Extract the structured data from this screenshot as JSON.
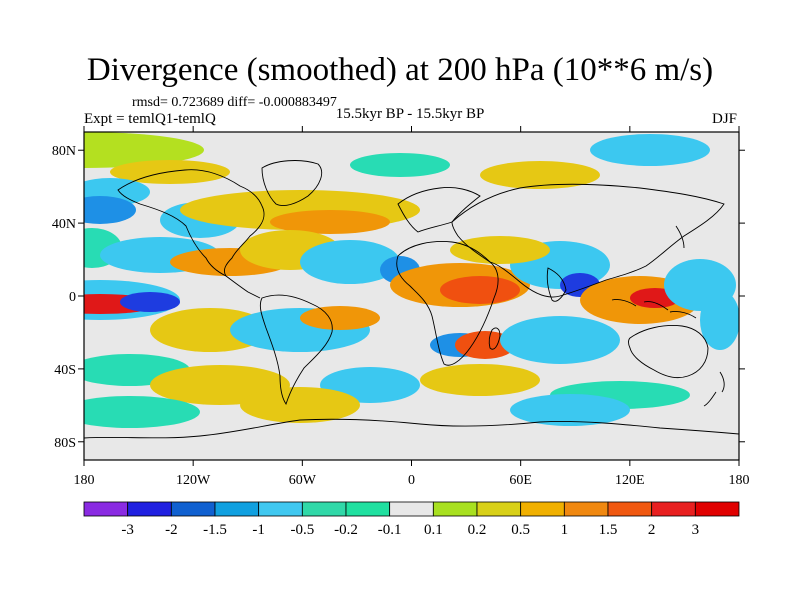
{
  "title": "Divergence (smoothed) at 200 hPa (10**6 m/s)",
  "stats_line": "rmsd= 0.723689 diff= -0.000883497",
  "experiment_label": "Expt = temlQ1-temlQ",
  "period_label": "15.5kyr BP - 15.5kyr BP",
  "season_label": "DJF",
  "map": {
    "lon_range": [
      -180,
      180
    ],
    "lat_range": [
      -90,
      90
    ],
    "lat_ticks": [
      {
        "value": 80,
        "label": "80N"
      },
      {
        "value": 40,
        "label": "40N"
      },
      {
        "value": 0,
        "label": "0"
      },
      {
        "value": -40,
        "label": "40S"
      },
      {
        "value": -80,
        "label": "80S"
      }
    ],
    "lon_ticks": [
      {
        "value": -180,
        "label": "180"
      },
      {
        "value": -120,
        "label": "120W"
      },
      {
        "value": -60,
        "label": "60W"
      },
      {
        "value": 0,
        "label": "0"
      },
      {
        "value": 60,
        "label": "60E"
      },
      {
        "value": 120,
        "label": "120E"
      },
      {
        "value": 180,
        "label": "180"
      }
    ]
  },
  "colorbar": {
    "colors": [
      "#8a2be2",
      "#2020e0",
      "#1060d0",
      "#10a0e0",
      "#40c8f0",
      "#30d8a8",
      "#20e0a0",
      "#e8e8e8",
      "#a8e020",
      "#d8d018",
      "#f0b000",
      "#f08810",
      "#f05810",
      "#e82020",
      "#e00000"
    ],
    "labels": [
      "-3",
      "-2",
      "-1.5",
      "-1",
      "-0.5",
      "-0.2",
      "-0.1",
      "0.1",
      "0.2",
      "0.5",
      "1",
      "1.5",
      "2",
      "3"
    ]
  },
  "field_colors": {
    "neutral": "#e8e8e8",
    "neg_strong": "#1e3ce0",
    "neg_mid": "#1e90e6",
    "neg_weak": "#3cc8f0",
    "neg_faint": "#28dcb4",
    "pos_faint": "#b4e020",
    "pos_weak": "#e6c814",
    "pos_mid": "#f09608",
    "pos_strong": "#f05010",
    "pos_max": "#e01818",
    "land_outline": "#000000"
  }
}
